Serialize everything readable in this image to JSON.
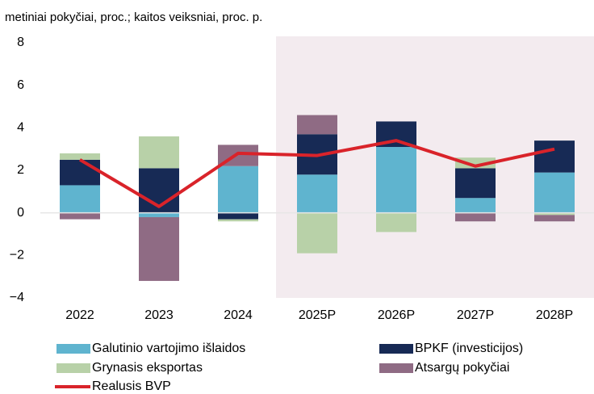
{
  "chart_data": {
    "type": "bar",
    "stacked": true,
    "title": "metiniai pokyčiai, proc.; kaitos veiksniai, proc. p.",
    "categories": [
      "2022",
      "2023",
      "2024",
      "2025P",
      "2026P",
      "2027P",
      "2028P"
    ],
    "series": [
      {
        "name": "Galutinio vartojimo išlaidos",
        "color": "#5fb4cf",
        "values": [
          1.3,
          -0.2,
          2.2,
          1.8,
          3.1,
          0.7,
          1.9
        ]
      },
      {
        "name": "BPKF (investicijos)",
        "color": "#172a55",
        "values": [
          1.2,
          2.1,
          -0.3,
          1.9,
          1.2,
          1.4,
          1.5
        ]
      },
      {
        "name": "Grynasis eksportas",
        "color": "#b8d1a8",
        "values": [
          0.3,
          1.5,
          -0.1,
          -1.9,
          -0.9,
          0.5,
          -0.1
        ]
      },
      {
        "name": "Atsargų pokyčiai",
        "color": "#8f6b84",
        "values": [
          -0.3,
          -3.0,
          1.0,
          0.9,
          0,
          -0.4,
          -0.3
        ]
      },
      {
        "name": "Realusis BVP",
        "color": "#d9232a",
        "type": "line",
        "values": [
          2.5,
          0.3,
          2.8,
          2.7,
          3.4,
          2.2,
          3.0
        ]
      }
    ],
    "ylim": [
      -4,
      8
    ],
    "yticks": [
      {
        "value": -4,
        "label": "−4"
      },
      {
        "value": -2,
        "label": "−2"
      },
      0,
      2,
      4,
      6,
      8
    ],
    "shaded_from": "2025P",
    "shade_color": "#f3ebef",
    "grid": false
  }
}
